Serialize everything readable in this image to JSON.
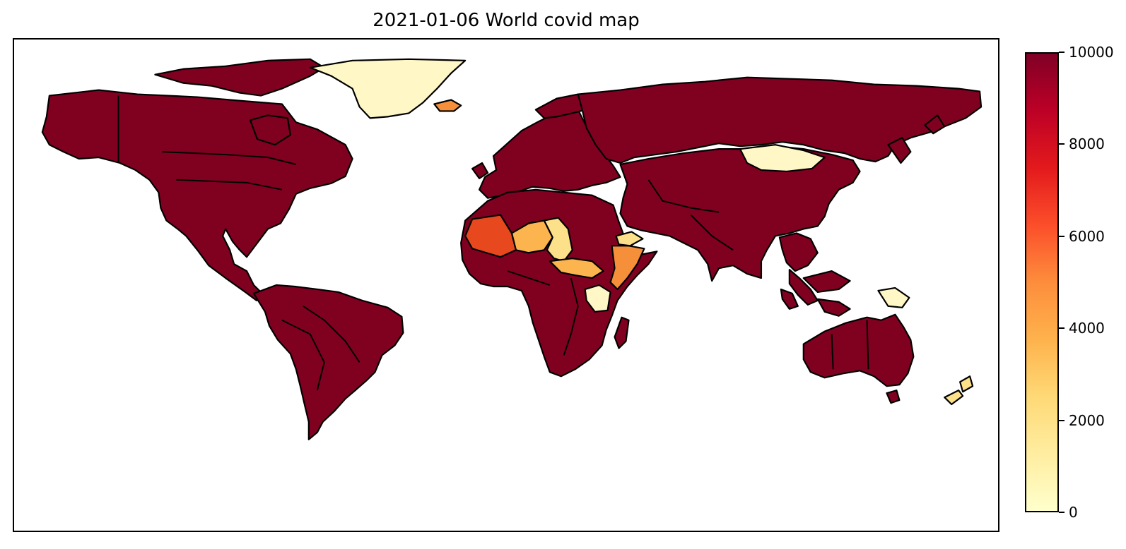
{
  "title": "2021-01-06 World covid map",
  "colorbar": {
    "min": 0,
    "max": 10000,
    "tick_labels": [
      "10000",
      "8000",
      "6000",
      "4000",
      "2000",
      "0"
    ],
    "tick_values": [
      10000,
      8000,
      6000,
      4000,
      2000,
      0
    ],
    "colormap": [
      "#ffffcc",
      "#ffeda0",
      "#fed976",
      "#feb24c",
      "#fd8d3c",
      "#fc4e2a",
      "#e31a1c",
      "#bd0026",
      "#800026"
    ]
  },
  "colors": {
    "high": "#800020",
    "very_low": "#fff7c6",
    "low": "#fde08a",
    "mid_low": "#fbb44e",
    "mid": "#f68f3a",
    "mid_high": "#e8481e",
    "near_max": "#b41c24"
  },
  "regions": [
    {
      "name": "north-america",
      "level": "high"
    },
    {
      "name": "greenland",
      "level": "very_low"
    },
    {
      "name": "iceland",
      "level": "mid"
    },
    {
      "name": "south-america",
      "level": "high"
    },
    {
      "name": "europe",
      "level": "high"
    },
    {
      "name": "russia",
      "level": "high"
    },
    {
      "name": "asia",
      "level": "high"
    },
    {
      "name": "mongolia",
      "level": "very_low"
    },
    {
      "name": "africa",
      "level": "high"
    },
    {
      "name": "mali",
      "level": "mid_high"
    },
    {
      "name": "niger",
      "level": "mid_low"
    },
    {
      "name": "chad",
      "level": "low"
    },
    {
      "name": "sudan-south",
      "level": "mid_low"
    },
    {
      "name": "somalia",
      "level": "mid"
    },
    {
      "name": "tanzania",
      "level": "very_low"
    },
    {
      "name": "yemen",
      "level": "low"
    },
    {
      "name": "australia",
      "level": "high"
    },
    {
      "name": "new-zealand",
      "level": "low"
    },
    {
      "name": "papua-new-guinea",
      "level": "very_low"
    }
  ]
}
